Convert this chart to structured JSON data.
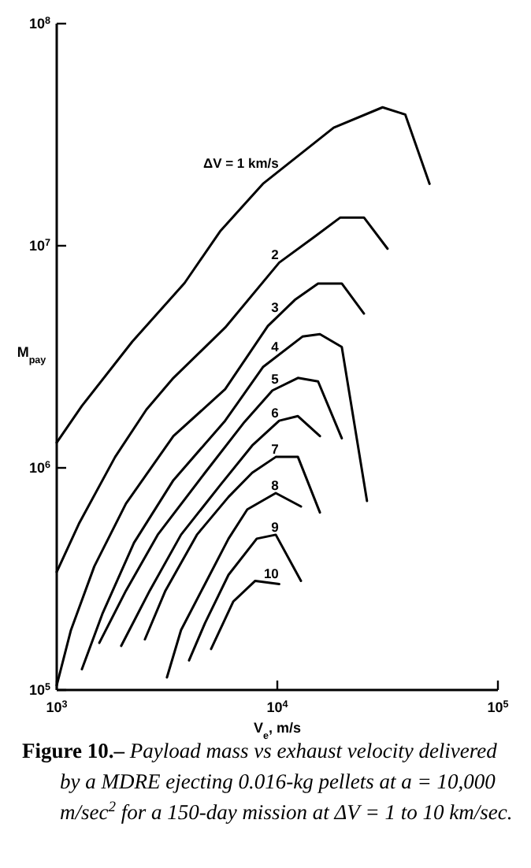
{
  "chart_data": {
    "type": "line",
    "xlabel": "V$_{e}$, m/s",
    "ylabel": "M$_{pay}$",
    "log": "xy",
    "xlim": [
      1000,
      100000
    ],
    "ylim": [
      100000,
      100000000
    ],
    "xticks": [
      {
        "value": 1000,
        "label": "10$^{3}$"
      },
      {
        "value": 10000,
        "label": "10$^{4}$"
      },
      {
        "value": 100000,
        "label": "10$^{5}$"
      }
    ],
    "yticks": [
      {
        "value": 100000,
        "label": "10$^{5}$"
      },
      {
        "value": 1000000,
        "label": "10$^{6}$"
      },
      {
        "value": 10000000,
        "label": "10$^{7}$"
      },
      {
        "value": 100000000,
        "label": "10$^{8}$"
      }
    ],
    "annotations": [
      "Figure 10.–",
      "Payload mass vs exhaust velocity delivered by a MDRE ejecting 0.016-kg pellets at a = 10,000 m/sec$^{2}$ for a 150-day mission at ΔV = 1 to 10 km/sec."
    ],
    "series": [
      {
        "name": "ΔV = 1 km/s",
        "color": "#000000",
        "x": [
          1000,
          1300,
          2200,
          3800,
          5500,
          8600,
          18000,
          30000,
          38000,
          49000
        ],
        "values": [
          1300000,
          1900000,
          3700000,
          6800000,
          11600000,
          19000000,
          34000000,
          42000000,
          39000000,
          19000000
        ]
      },
      {
        "name": "2",
        "color": "#000000",
        "x": [
          1000,
          1260,
          1840,
          2550,
          3380,
          5800,
          10200,
          14800,
          19300,
          24700,
          31600
        ],
        "values": [
          340000,
          560000,
          1120000,
          1830000,
          2540000,
          4280000,
          8400000,
          11000000,
          13400000,
          13400000,
          9700000
        ]
      },
      {
        "name": "3",
        "color": "#000000",
        "x": [
          1000,
          1160,
          1480,
          2060,
          3380,
          5800,
          9060,
          12000,
          15300,
          19600,
          24700
        ],
        "values": [
          105000,
          186000,
          360000,
          690000,
          1390000,
          2260000,
          4350000,
          5700000,
          6760000,
          6760000,
          4950000
        ]
      },
      {
        "name": "4",
        "color": "#000000",
        "x": [
          1300,
          1610,
          2240,
          3380,
          5800,
          8630,
          13000,
          15600,
          19600,
          25500
        ],
        "values": [
          124000,
          220000,
          460000,
          880000,
          1630000,
          2850000,
          3900000,
          4000000,
          3500000,
          710000
        ]
      },
      {
        "name": "5",
        "color": "#000000",
        "x": [
          1560,
          2060,
          2870,
          4700,
          7100,
          9500,
          12400,
          15300,
          19600
        ],
        "values": [
          163000,
          280000,
          500000,
          950000,
          1610000,
          2230000,
          2540000,
          2450000,
          1360000
        ]
      },
      {
        "name": "6",
        "color": "#000000",
        "x": [
          1960,
          2640,
          3660,
          5530,
          7690,
          10200,
          12400,
          15600
        ],
        "values": [
          158000,
          280000,
          500000,
          840000,
          1260000,
          1630000,
          1710000,
          1390000
        ]
      },
      {
        "name": "7",
        "color": "#000000",
        "x": [
          2510,
          3110,
          4320,
          6010,
          7690,
          9840,
          12400,
          15600
        ],
        "values": [
          169000,
          280000,
          500000,
          740000,
          950000,
          1120000,
          1120000,
          630000
        ]
      },
      {
        "name": "8",
        "color": "#000000",
        "x": [
          3160,
          3660,
          4700,
          6010,
          7310,
          9840,
          12800
        ],
        "values": [
          114000,
          186000,
          300000,
          480000,
          650000,
          770000,
          670000
        ]
      },
      {
        "name": "9",
        "color": "#000000",
        "x": [
          3980,
          4700,
          6010,
          8070,
          9840,
          12800
        ],
        "values": [
          136000,
          200000,
          330000,
          480000,
          500000,
          310000
        ]
      },
      {
        "name": "10",
        "color": "#000000",
        "x": [
          5010,
          6310,
          7940,
          10200
        ],
        "values": [
          153000,
          250000,
          310000,
          300000
        ]
      }
    ]
  }
}
